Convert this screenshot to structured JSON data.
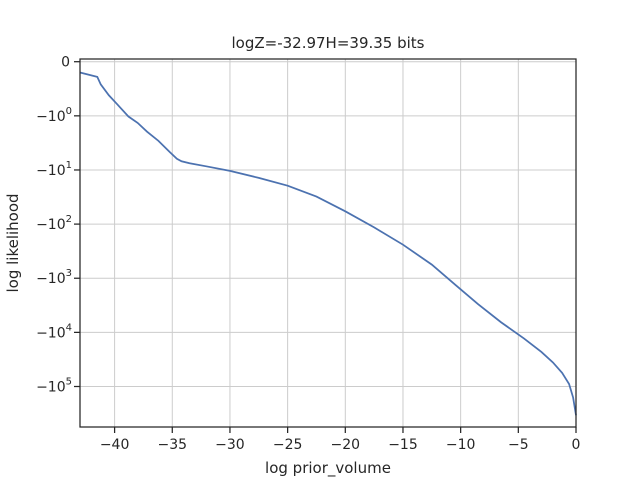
{
  "chart_data": {
    "type": "line",
    "title": "logZ=-32.97H=39.35 bits",
    "xlabel": "log prior_volume",
    "ylabel": "log likelihood",
    "xlim": [
      -43,
      0
    ],
    "y_scale": "symlog",
    "grid": true,
    "color": "#4c72b0",
    "x_ticks": [
      {
        "value": -40,
        "label": "−40"
      },
      {
        "value": -35,
        "label": "−35"
      },
      {
        "value": -30,
        "label": "−30"
      },
      {
        "value": -25,
        "label": "−25"
      },
      {
        "value": -20,
        "label": "−20"
      },
      {
        "value": -15,
        "label": "−15"
      },
      {
        "value": -10,
        "label": "−10"
      },
      {
        "value": -5,
        "label": "−5"
      },
      {
        "value": 0,
        "label": "0"
      }
    ],
    "y_ticks": [
      {
        "value": 0,
        "label": "0"
      },
      {
        "value": -1,
        "label": "−10",
        "exp": "0"
      },
      {
        "value": -10,
        "label": "−10",
        "exp": "1"
      },
      {
        "value": -100,
        "label": "−10",
        "exp": "2"
      },
      {
        "value": -1000,
        "label": "−10",
        "exp": "3"
      },
      {
        "value": -10000,
        "label": "−10",
        "exp": "4"
      },
      {
        "value": -100000,
        "label": "−10",
        "exp": "5"
      }
    ],
    "series": [
      {
        "x": [
          -43,
          -41.5,
          -41.2,
          -40.5,
          -39.8,
          -38.8,
          -38.0,
          -37.2,
          -36.2,
          -35.2,
          -34.6,
          -34.2,
          -33.5,
          -32.0,
          -30.0,
          -27.5,
          -25.0,
          -22.5,
          -20.0,
          -17.5,
          -15.0,
          -12.5,
          -10.5,
          -8.5,
          -6.5,
          -4.5,
          -3.0,
          -2.0,
          -1.2,
          -0.6,
          -0.25,
          0
        ],
        "y": [
          -0.2,
          -0.28,
          -0.42,
          -0.62,
          -0.78,
          -1.03,
          -1.35,
          -1.95,
          -2.9,
          -4.7,
          -6.2,
          -6.9,
          -7.5,
          -8.6,
          -10.4,
          -14.0,
          -19.5,
          -31.0,
          -58.0,
          -115.0,
          -240.0,
          -560.0,
          -1300.0,
          -3000.0,
          -6500.0,
          -13000.0,
          -23000.0,
          -36000.0,
          -56000.0,
          -90000.0,
          -160000.0,
          -340000.0
        ]
      }
    ]
  }
}
